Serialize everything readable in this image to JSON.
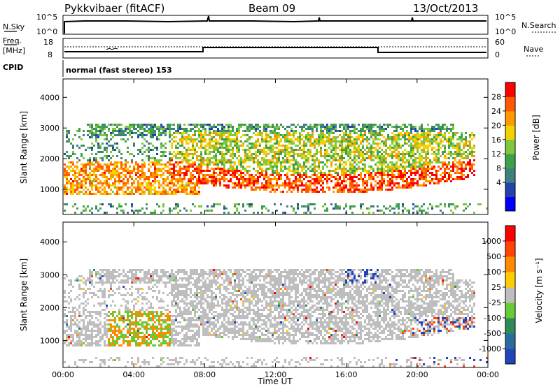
{
  "header": {
    "station": "Pykkvibaer (fitACF)",
    "beam": "Beam 09",
    "date": "13/Oct/2013"
  },
  "panels": {
    "nsky": {
      "label": "N.Sky",
      "right_label": "N.Search",
      "left_ticks": [
        "10^5",
        "10^0"
      ],
      "right_ticks": [
        "10^5",
        "10^0"
      ]
    },
    "freq": {
      "label": "Freq.",
      "unit": "[MHz]",
      "right_label": "Nave",
      "left_ticks": [
        "18",
        "8"
      ],
      "right_ticks": [
        "60",
        "0"
      ]
    },
    "cpid": {
      "label": "CPID",
      "text": "normal (fast stereo) 153"
    }
  },
  "chart_data": [
    {
      "type": "heatmap",
      "name": "power",
      "ylabel": "Slant Range [km]",
      "y_ticks": [
        "4000",
        "3000",
        "2000",
        "1000"
      ],
      "ylim": [
        180,
        4600
      ],
      "colorbar": {
        "label": "Power [dB]",
        "ticks": [
          "28",
          "24",
          "20",
          "16",
          "12",
          "8",
          "4"
        ],
        "colors": [
          "#0000ff",
          "#2244aa",
          "#3f7f7f",
          "#3fa04a",
          "#7dc83f",
          "#f2d200",
          "#ff9900",
          "#ff5a00",
          "#ff0000"
        ]
      }
    },
    {
      "type": "heatmap",
      "name": "velocity",
      "ylabel": "Slant Range [km]",
      "y_ticks": [
        "4000",
        "3000",
        "2000",
        "1000"
      ],
      "ylim": [
        180,
        4600
      ],
      "colorbar": {
        "label": "Velocity [m s⁻¹]",
        "ticks": [
          "1000",
          "500",
          "100",
          "25",
          "-25",
          "-100",
          "-500",
          "-1000"
        ],
        "colors": [
          "#2244bb",
          "#2b6c9e",
          "#2e8b57",
          "#66cc33",
          "#bebebe",
          "#ffcc00",
          "#ff8c00",
          "#ff4500",
          "#ff0000"
        ]
      }
    }
  ],
  "xaxis": {
    "label": "Time UT",
    "ticks": [
      "00:00",
      "04:00",
      "08:00",
      "12:00",
      "16:00",
      "20:00",
      "00:00"
    ]
  }
}
